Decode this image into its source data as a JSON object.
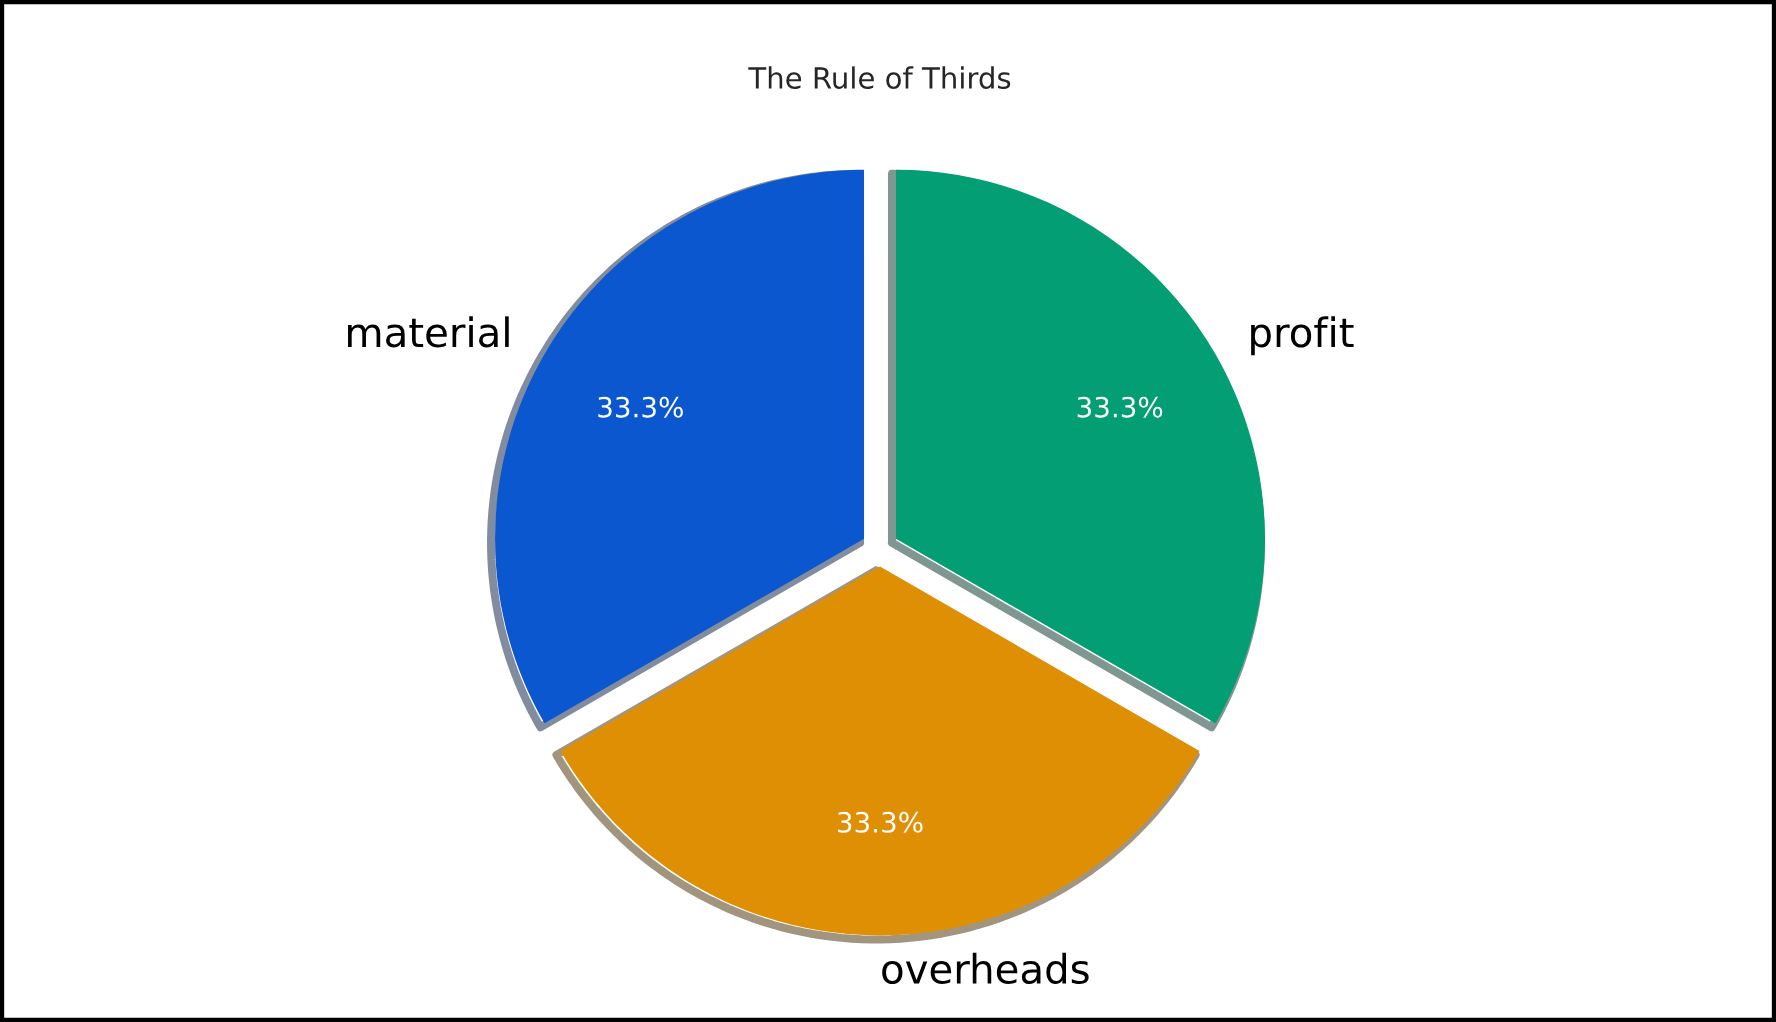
{
  "chart_data": {
    "type": "pie",
    "title": "The Rule of Thirds",
    "categories": [
      "material",
      "overheads",
      "profit"
    ],
    "values": [
      33.3,
      33.3,
      33.3
    ],
    "colors": [
      "#0b57d0",
      "#df8f04",
      "#039e74"
    ],
    "value_labels": [
      "33.3%",
      "33.3%",
      "33.3%"
    ]
  }
}
